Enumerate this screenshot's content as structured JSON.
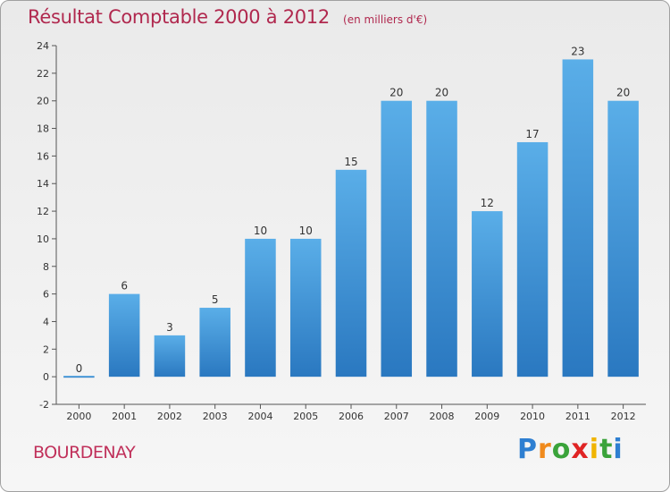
{
  "chart_data": {
    "type": "bar",
    "title": "Résultat Comptable 2000 à 2012",
    "subtitle": "(en milliers d'€)",
    "categories": [
      "2000",
      "2001",
      "2002",
      "2003",
      "2004",
      "2005",
      "2006",
      "2007",
      "2008",
      "2009",
      "2010",
      "2011",
      "2012"
    ],
    "values": [
      0,
      6,
      3,
      5,
      10,
      10,
      15,
      20,
      20,
      12,
      17,
      23,
      20
    ],
    "ylim": [
      -2,
      24
    ],
    "yticks": [
      -2,
      0,
      2,
      4,
      6,
      8,
      10,
      12,
      14,
      16,
      18,
      20,
      22,
      24
    ],
    "xlabel": "",
    "ylabel": "",
    "grid": false,
    "bar_color": "#3d8fd6"
  },
  "commune": "BOURDENAY",
  "logo": {
    "letters": [
      "P",
      "r",
      "o",
      "x",
      "i",
      "t",
      "i"
    ],
    "colors": [
      "#2e7fd1",
      "#f08a1c",
      "#3aa33a",
      "#e02424",
      "#f0b400",
      "#3aa33a",
      "#2e7fd1"
    ]
  }
}
